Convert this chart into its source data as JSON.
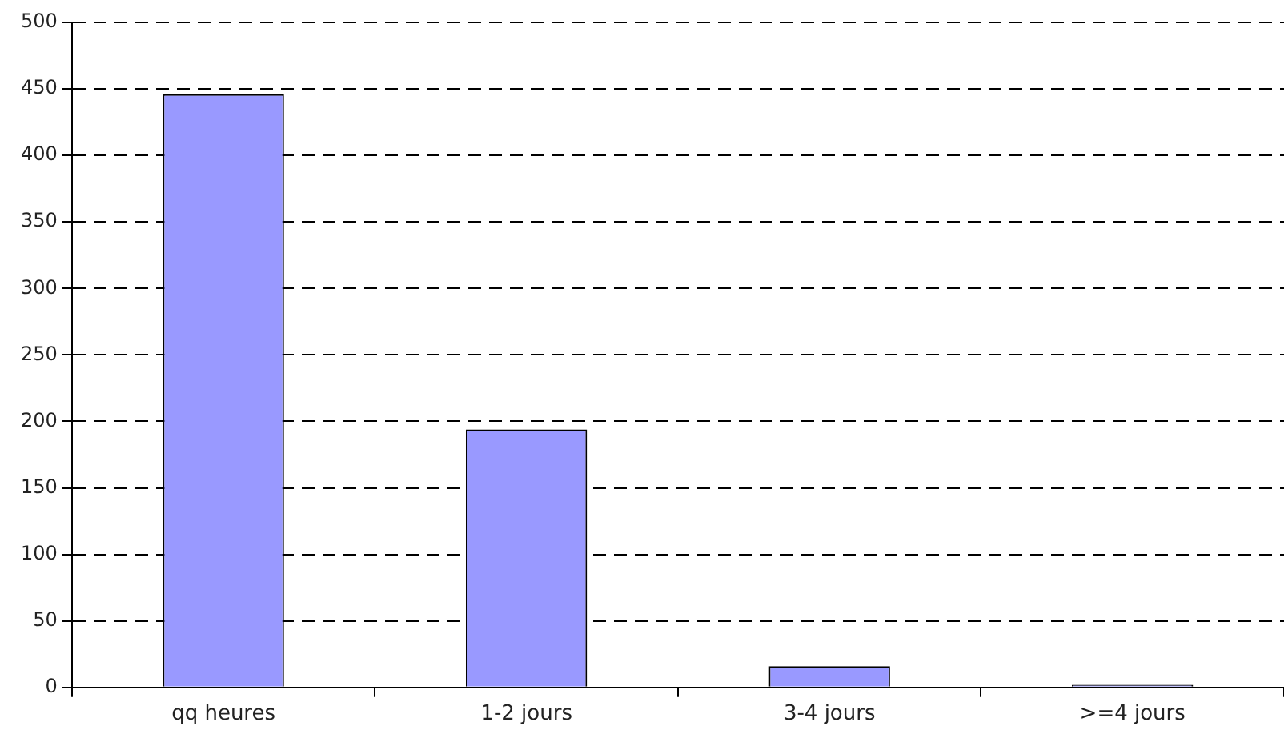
{
  "chart_data": {
    "type": "bar",
    "categories": [
      "qq heures",
      "1-2 jours",
      "3-4 jours",
      ">=4 jours"
    ],
    "values": [
      446,
      194,
      16,
      2
    ],
    "color": "#9999ff",
    "ylim": [
      0,
      500
    ],
    "yticks": [
      0,
      50,
      100,
      150,
      200,
      250,
      300,
      350,
      400,
      450,
      500
    ],
    "grid": "y"
  }
}
